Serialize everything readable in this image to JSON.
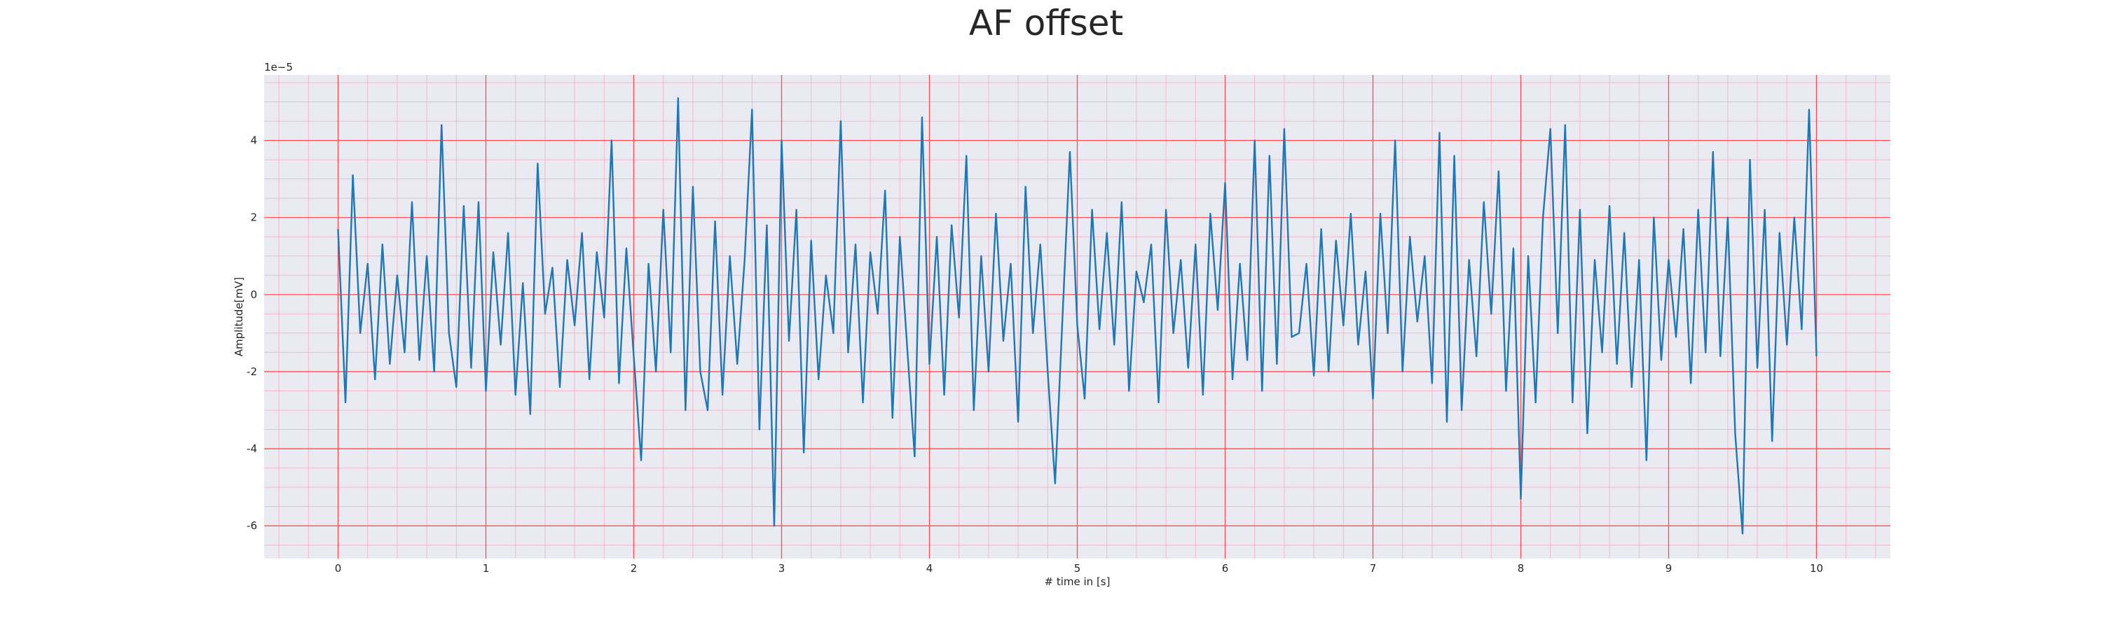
{
  "chart_data": {
    "type": "line",
    "title": "AF offset",
    "xlabel": "# time in [s]",
    "ylabel": "Amplitude[mV]",
    "y_offset_label": "1e−5",
    "grid": true,
    "grid_color": "#ff4d4d",
    "minor_grid_color": "#f4b8c8",
    "background": "#eaeaf2",
    "xlim": [
      -0.5,
      10.5
    ],
    "xticks": [
      0,
      1,
      2,
      3,
      4,
      5,
      6,
      7,
      8,
      9,
      10
    ],
    "ylim": [
      -6.85,
      5.7
    ],
    "yticks": [
      -6,
      -4,
      -2,
      0,
      2,
      4
    ],
    "minor_xticks": [
      -0.4,
      -0.2,
      0.2,
      0.4,
      0.6,
      0.8,
      1.2,
      1.4,
      1.6,
      1.8,
      2.2,
      2.4,
      2.6,
      2.8,
      3.2,
      3.4,
      3.6,
      3.8,
      4.2,
      4.4,
      4.6,
      4.8,
      5.2,
      5.4,
      5.6,
      5.8,
      6.2,
      6.4,
      6.6,
      6.8,
      7.2,
      7.4,
      7.6,
      7.8,
      8.2,
      8.4,
      8.6,
      8.8,
      9.2,
      9.4,
      9.6,
      9.8,
      10.2,
      10.4
    ],
    "minor_yticks": [
      -6.5,
      -5.5,
      -5,
      -4.5,
      -3.5,
      -3,
      -2.5,
      -1.5,
      -1,
      -0.5,
      0.5,
      1,
      1.5,
      2.5,
      3,
      3.5,
      4.5,
      5,
      5.5
    ],
    "series": [
      {
        "name": "AF offset",
        "color": "#1f77b4",
        "x": [
          0,
          0.05,
          0.1,
          0.15,
          0.2,
          0.25,
          0.3,
          0.35,
          0.4,
          0.45,
          0.5,
          0.55,
          0.6,
          0.65,
          0.7,
          0.75,
          0.8,
          0.85,
          0.9,
          0.95,
          1,
          1.05,
          1.1,
          1.15,
          1.2,
          1.25,
          1.3,
          1.35,
          1.4,
          1.45,
          1.5,
          1.55,
          1.6,
          1.65,
          1.7,
          1.75,
          1.8,
          1.85,
          1.9,
          1.95,
          2,
          2.05,
          2.1,
          2.15,
          2.2,
          2.25,
          2.3,
          2.35,
          2.4,
          2.45,
          2.5,
          2.55,
          2.6,
          2.65,
          2.7,
          2.75,
          2.8,
          2.85,
          2.9,
          2.95,
          3,
          3.05,
          3.1,
          3.15,
          3.2,
          3.25,
          3.3,
          3.35,
          3.4,
          3.45,
          3.5,
          3.55,
          3.6,
          3.65,
          3.7,
          3.75,
          3.8,
          3.85,
          3.9,
          3.95,
          4,
          4.05,
          4.1,
          4.15,
          4.2,
          4.25,
          4.3,
          4.35,
          4.4,
          4.45,
          4.5,
          4.55,
          4.6,
          4.65,
          4.7,
          4.75,
          4.8,
          4.85,
          4.9,
          4.95,
          5,
          5.05,
          5.1,
          5.15,
          5.2,
          5.25,
          5.3,
          5.35,
          5.4,
          5.45,
          5.5,
          5.55,
          5.6,
          5.65,
          5.7,
          5.75,
          5.8,
          5.85,
          5.9,
          5.95,
          6,
          6.05,
          6.1,
          6.15,
          6.2,
          6.25,
          6.3,
          6.35,
          6.4,
          6.45,
          6.5,
          6.55,
          6.6,
          6.65,
          6.7,
          6.75,
          6.8,
          6.85,
          6.9,
          6.95,
          7,
          7.05,
          7.1,
          7.15,
          7.2,
          7.25,
          7.3,
          7.35,
          7.4,
          7.45,
          7.5,
          7.55,
          7.6,
          7.65,
          7.7,
          7.75,
          7.8,
          7.85,
          7.9,
          7.95,
          8,
          8.05,
          8.1,
          8.15,
          8.2,
          8.25,
          8.3,
          8.35,
          8.4,
          8.45,
          8.5,
          8.55,
          8.6,
          8.65,
          8.7,
          8.75,
          8.8,
          8.85,
          8.9,
          8.95,
          9,
          9.05,
          9.1,
          9.15,
          9.2,
          9.25,
          9.3,
          9.35,
          9.4,
          9.45,
          9.5,
          9.55,
          9.6,
          9.65,
          9.7,
          9.75,
          9.8,
          9.85,
          9.9,
          9.95,
          10
        ],
        "values": [
          1.7,
          -2.8,
          3.1,
          -1.0,
          0.8,
          -2.2,
          1.3,
          -1.8,
          0.5,
          -1.5,
          2.4,
          -1.7,
          1.0,
          -2.0,
          4.4,
          -1.0,
          -2.4,
          2.3,
          -1.9,
          2.4,
          -2.5,
          1.1,
          -1.3,
          1.6,
          -2.6,
          0.3,
          -3.1,
          3.4,
          -0.5,
          0.7,
          -2.4,
          0.9,
          -0.8,
          1.6,
          -2.2,
          1.1,
          -0.6,
          4.0,
          -2.3,
          1.2,
          -1.6,
          -4.3,
          0.8,
          -2.0,
          2.2,
          -1.5,
          5.1,
          -3.0,
          2.8,
          -2.0,
          -3.0,
          1.9,
          -2.6,
          1.0,
          -1.8,
          0.9,
          4.8,
          -3.5,
          1.8,
          -6.0,
          4.0,
          -1.2,
          2.2,
          -4.1,
          1.4,
          -2.2,
          0.5,
          -1.0,
          4.5,
          -1.5,
          1.3,
          -2.8,
          1.1,
          -0.5,
          2.7,
          -3.2,
          1.5,
          -1.4,
          -4.2,
          4.6,
          -1.8,
          1.5,
          -2.6,
          1.8,
          -0.6,
          3.6,
          -3.0,
          1.0,
          -2.0,
          2.1,
          -1.2,
          0.8,
          -3.3,
          2.8,
          -1.0,
          1.3,
          -2.0,
          -4.9,
          -0.6,
          3.7,
          -0.8,
          -2.7,
          2.2,
          -0.9,
          1.6,
          -1.3,
          2.4,
          -2.5,
          0.6,
          -0.2,
          1.3,
          -2.8,
          2.2,
          -1.0,
          0.9,
          -1.9,
          1.3,
          -2.6,
          2.1,
          -0.4,
          2.9,
          -2.2,
          0.8,
          -1.7,
          4.0,
          -2.5,
          3.6,
          -1.8,
          4.3,
          -1.1,
          -1.0,
          0.8,
          -2.1,
          1.7,
          -2.0,
          1.4,
          -0.8,
          2.1,
          -1.3,
          0.6,
          -2.7,
          2.1,
          -1.0,
          4.0,
          -2.0,
          1.5,
          -0.7,
          1.0,
          -2.3,
          4.2,
          -3.3,
          3.6,
          -3.0,
          0.9,
          -1.6,
          2.4,
          -0.5,
          3.2,
          -2.5,
          1.2,
          -5.3,
          1.0,
          -2.8,
          2.0,
          4.3,
          -1.0,
          4.4,
          -2.8,
          2.2,
          -3.6,
          0.9,
          -1.5,
          2.3,
          -1.8,
          1.6,
          -2.4,
          0.9,
          -4.3,
          2.0,
          -1.7,
          0.9,
          -1.1,
          1.7,
          -2.3,
          2.2,
          -1.5,
          3.7,
          -1.6,
          2.0,
          -3.6,
          -6.2,
          3.5,
          -1.9,
          2.2,
          -3.8,
          1.6,
          -1.3,
          2.0,
          -0.9,
          4.8,
          -1.6
        ]
      }
    ]
  }
}
